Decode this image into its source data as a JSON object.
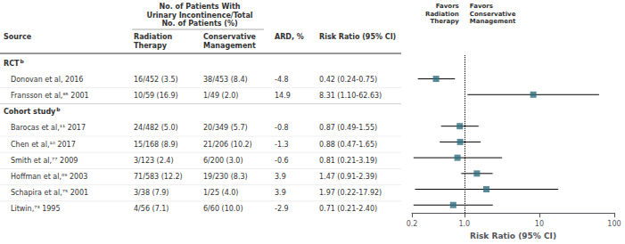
{
  "chart_data": {
    "type": "forest",
    "column_header": "No. of Patients With\nUrinary Incontinence/Total\nNo. of Patients (%)",
    "columns": [
      "Source",
      "Radiation\nTherapy",
      "Conservative\nManagement",
      "ARD, %",
      "Risk Ratio (95% CI)"
    ],
    "sections": [
      {
        "name": "RCT",
        "note": "b",
        "rows": [
          {
            "label": "Donovan et al,⁦⁦ 2016",
            "radiation": "16/452 (3.5)",
            "conservative": "38/453 (8.4)",
            "ard": "-4.8",
            "rr_text": "0.42 (0.24-0.75)",
            "value": 0.42,
            "ci_lo": 0.24,
            "ci_hi": 0.75
          },
          {
            "label": "Fransson et al,⁸⁵ 2001",
            "radiation": "10/59 (16.9)",
            "conservative": "1/49 (2.0)",
            "ard": "14.9",
            "rr_text": "8.31 (1.10-62.63)",
            "value": 8.31,
            "ci_lo": 1.1,
            "ci_hi": 62.63
          }
        ]
      },
      {
        "name": "Cohort study",
        "note": "b",
        "rows": [
          {
            "label": "Barocas et al,¹¹ 2017",
            "radiation": "24/482 (5.0)",
            "conservative": "20/349 (5.7)",
            "ard": "-0.8",
            "rr_text": "0.87 (0.49-1.55)",
            "value": 0.87,
            "ci_lo": 0.49,
            "ci_hi": 1.55
          },
          {
            "label": "Chen et al,¹⁰ 2017",
            "radiation": "15/168 (8.9)",
            "conservative": "21/206 (10.2)",
            "ard": "-1.3",
            "rr_text": "0.88 (0.47-1.65)",
            "value": 0.88,
            "ci_lo": 0.47,
            "ci_hi": 1.65
          },
          {
            "label": "Smith et al,⁷⁷ 2009",
            "radiation": "3/123 (2.4)",
            "conservative": "6/200 (3.0)",
            "ard": "-0.6",
            "rr_text": "0.81 (0.21-3.19)",
            "value": 0.81,
            "ci_lo": 0.21,
            "ci_hi": 3.19
          },
          {
            "label": "Hoffman et al,⁶⁹ 2003",
            "radiation": "71/583 (12.2)",
            "conservative": "19/230 (8.3)",
            "ard": "3.9",
            "rr_text": "1.47 (0.91-2.39)",
            "value": 1.47,
            "ci_lo": 0.91,
            "ci_hi": 2.39
          },
          {
            "label": "Schapira et al,⁷⁵ 2001",
            "radiation": "3/38 (7.9)",
            "conservative": "1/25 (4.0)",
            "ard": "3.9",
            "rr_text": "1.97 (0.22-17.92)",
            "value": 1.97,
            "ci_lo": 0.22,
            "ci_hi": 17.92
          },
          {
            "label": "Litwin,⁷³ 1995",
            "radiation": "4/56 (7.1)",
            "conservative": "6/60 (10.0)",
            "ard": "-2.9",
            "rr_text": "0.71 (0.21-2.40)",
            "value": 0.71,
            "ci_lo": 0.21,
            "ci_hi": 2.4
          }
        ]
      }
    ],
    "xlabel": "Risk Ratio (95% CI)",
    "log": "x",
    "xlim": [
      0.2,
      100
    ],
    "xticks": [
      0.2,
      {
        "value": 1,
        "label": "1.0"
      },
      10,
      100
    ],
    "reference_line": 1,
    "annotations": [
      "Favors\nRadiation\nTherapy",
      "Favors\nConservative\nManagement"
    ],
    "color": "#2e6e7e",
    "grid": false
  }
}
